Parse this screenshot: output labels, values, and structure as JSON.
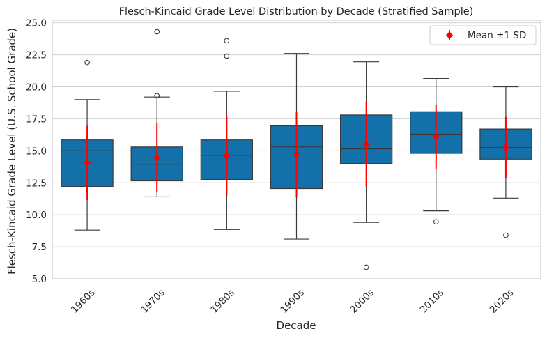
{
  "chart_data": {
    "type": "box",
    "title": "Flesch-Kincaid Grade Level Distribution by Decade (Stratified Sample)",
    "xlabel": "Decade",
    "ylabel": "Flesch-Kincaid Grade Level (U.S. School Grade)",
    "ylim": [
      5.0,
      25.2
    ],
    "yticks": [
      "5.0",
      "7.5",
      "10.0",
      "12.5",
      "15.0",
      "17.5",
      "20.0",
      "22.5",
      "25.0"
    ],
    "grid": "horizontal",
    "legend": {
      "placement": "top-right",
      "entries": [
        "Mean ±1 SD"
      ]
    },
    "colors": {
      "box_fill": "#1470a8",
      "line": "#3a3a3a",
      "mean": "#ff0000",
      "grid": "#d0d0d0"
    },
    "categories": [
      "1960s",
      "1970s",
      "1980s",
      "1990s",
      "2000s",
      "2010s",
      "2020s"
    ],
    "boxes": [
      {
        "category": "1960s",
        "whisker_low": 8.8,
        "q1": 12.2,
        "median": 15.0,
        "q3": 15.85,
        "whisker_high": 19.0,
        "outliers": [
          21.9
        ],
        "mean": 14.05,
        "sd": 2.9
      },
      {
        "category": "1970s",
        "whisker_low": 11.4,
        "q1": 12.65,
        "median": 13.95,
        "q3": 15.3,
        "whisker_high": 19.2,
        "outliers": [
          19.3,
          24.3
        ],
        "mean": 14.45,
        "sd": 2.7
      },
      {
        "category": "1980s",
        "whisker_low": 8.85,
        "q1": 12.75,
        "median": 14.65,
        "q3": 15.85,
        "whisker_high": 19.65,
        "outliers": [
          22.4,
          23.6
        ],
        "mean": 14.6,
        "sd": 3.1
      },
      {
        "category": "1990s",
        "whisker_low": 8.1,
        "q1": 12.05,
        "median": 15.3,
        "q3": 16.95,
        "whisker_high": 22.6,
        "outliers": [],
        "mean": 14.7,
        "sd": 3.3
      },
      {
        "category": "2000s",
        "whisker_low": 9.4,
        "q1": 14.0,
        "median": 15.15,
        "q3": 17.8,
        "whisker_high": 21.95,
        "outliers": [
          5.9
        ],
        "mean": 15.5,
        "sd": 3.3
      },
      {
        "category": "2010s",
        "whisker_low": 10.3,
        "q1": 14.8,
        "median": 16.3,
        "q3": 18.05,
        "whisker_high": 20.65,
        "outliers": [
          9.45
        ],
        "mean": 16.1,
        "sd": 2.5
      },
      {
        "category": "2020s",
        "whisker_low": 11.3,
        "q1": 14.35,
        "median": 15.25,
        "q3": 16.7,
        "whisker_high": 20.0,
        "outliers": [
          8.4
        ],
        "mean": 15.25,
        "sd": 2.4
      }
    ]
  }
}
